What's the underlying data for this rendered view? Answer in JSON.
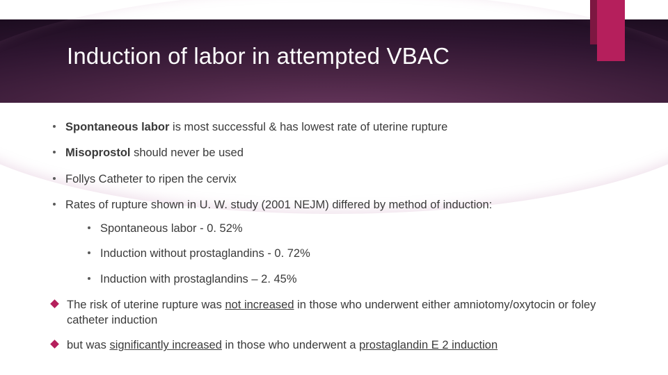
{
  "colors": {
    "accent": "#b51f5c",
    "accent_dark": "#7d1741",
    "text": "#3a3a3a",
    "bullet": "#5a5a5a",
    "title": "#ffffff"
  },
  "title": "Induction of labor in attempted VBAC",
  "bullets": [
    {
      "bold": "Spontaneous labor",
      "rest": " is most successful & has lowest rate of uterine rupture"
    },
    {
      "bold": "Misoprostol",
      "rest": " should never be used"
    },
    {
      "text": "Follys Catheter to ripen the cervix"
    },
    {
      "text": "Rates of rupture shown in U. W. study (2001 NEJM) differed by method of induction:",
      "sub": [
        "Spontaneous labor - 0. 52%",
        "Induction without prostaglandins - 0. 72%",
        "Induction with prostaglandins – 2. 45%"
      ]
    }
  ],
  "diamonds": [
    {
      "parts": [
        {
          "t": "The risk of uterine rupture was "
        },
        {
          "t": "not increased",
          "u": true
        },
        {
          "t": " in those who underwent either amniotomy/oxytocin or foley catheter induction"
        }
      ]
    },
    {
      "parts": [
        {
          "t": "but was "
        },
        {
          "t": "significantly increased",
          "u": true
        },
        {
          "t": " in those who underwent a "
        },
        {
          "t": "prostaglandin E 2 induction",
          "u": true
        }
      ]
    }
  ]
}
